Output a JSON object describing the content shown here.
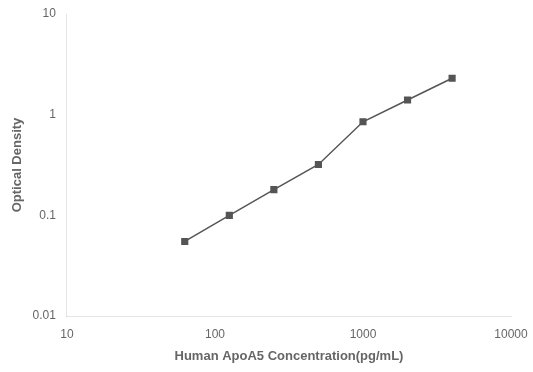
{
  "chart_data": {
    "type": "line",
    "x": [
      62.5,
      125,
      250,
      500,
      1000,
      2000,
      4000
    ],
    "values": [
      0.055,
      0.1,
      0.18,
      0.32,
      0.85,
      1.4,
      2.3
    ],
    "xlabel": "Human ApoA5 Concentration(pg/mL)",
    "ylabel": "Optical Density",
    "xlim": [
      10,
      10000
    ],
    "ylim": [
      0.01,
      10
    ],
    "xticks": [
      10,
      100,
      1000,
      10000
    ],
    "yticks": [
      0.01,
      0.1,
      1,
      10
    ],
    "log": true,
    "grid": false,
    "color": "#555555",
    "marker": "square"
  }
}
